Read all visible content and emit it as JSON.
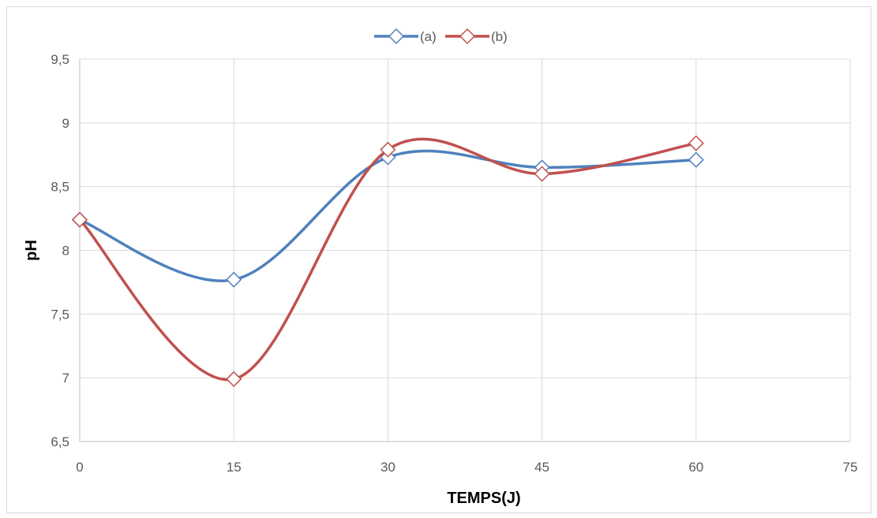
{
  "chart_data": {
    "type": "line",
    "title": "",
    "xlabel": "TEMPS(J)",
    "ylabel": "pH",
    "x": [
      0,
      15,
      30,
      45,
      60
    ],
    "xlim": [
      0,
      75
    ],
    "ylim": [
      6.5,
      9.5
    ],
    "x_ticks": [
      "0",
      "15",
      "30",
      "45",
      "60",
      "75"
    ],
    "y_ticks": [
      "6,5",
      "7",
      "7,5",
      "8",
      "8,5",
      "9",
      "9,5"
    ],
    "grid": true,
    "smooth": true,
    "legend_position": "top",
    "series": [
      {
        "name": "(a)",
        "color": "#4f81bd",
        "marker": "diamond",
        "values": [
          8.24,
          7.77,
          8.73,
          8.65,
          8.71
        ]
      },
      {
        "name": "(b)",
        "color": "#c0504d",
        "marker": "diamond",
        "values": [
          8.24,
          6.99,
          8.79,
          8.6,
          8.84
        ]
      }
    ]
  }
}
